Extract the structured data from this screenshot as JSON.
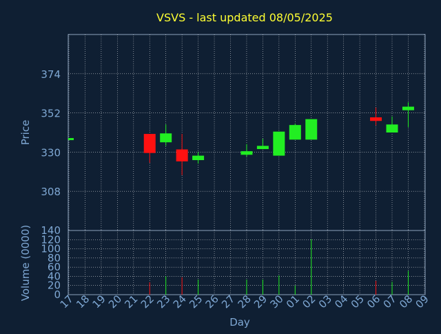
{
  "colors": {
    "background": "#0f1f33",
    "title": "#ffff33",
    "axis_text": "#7fa8d4",
    "grid": "#ffffff",
    "up": "#22ee22",
    "down": "#ff1111"
  },
  "chart_data": [
    {
      "type": "candlestick",
      "title": "VSVS - last updated 08/05/2025",
      "ylabel": "Price",
      "ylim": [
        286,
        396
      ],
      "yticks": [
        308,
        330,
        352,
        374
      ],
      "grid": true,
      "x": [
        "17",
        "18",
        "19",
        "20",
        "21",
        "22",
        "23",
        "24",
        "25",
        "26",
        "27",
        "28",
        "29",
        "30",
        "01",
        "02",
        "03",
        "04",
        "05",
        "06",
        "07",
        "08",
        "09"
      ],
      "candles": [
        {
          "x": "17",
          "open": 337.3,
          "close": 337.3,
          "high": 337.3,
          "low": 337.3
        },
        {
          "x": "22",
          "open": 340.2,
          "close": 329.5,
          "high": 340.2,
          "low": 324.0
        },
        {
          "x": "23",
          "open": 335.5,
          "close": 340.5,
          "high": 345.5,
          "low": 333.5
        },
        {
          "x": "24",
          "open": 331.5,
          "close": 324.8,
          "high": 340.2,
          "low": 317.1
        },
        {
          "x": "25",
          "open": 325.5,
          "close": 328.0,
          "high": 330.0,
          "low": 323.5
        },
        {
          "x": "28",
          "open": 328.5,
          "close": 330.5,
          "high": 334.5,
          "low": 327.5
        },
        {
          "x": "29",
          "open": 331.7,
          "close": 333.5,
          "high": 337.5,
          "low": 331.5
        },
        {
          "x": "30",
          "open": 328.0,
          "close": 341.5,
          "high": 341.5,
          "low": 328.0
        },
        {
          "x": "01",
          "open": 337.0,
          "close": 345.2,
          "high": 346.0,
          "low": 337.0
        },
        {
          "x": "02",
          "open": 337.0,
          "close": 348.5,
          "high": 348.5,
          "low": 337.0
        },
        {
          "x": "06",
          "open": 349.5,
          "close": 347.5,
          "high": 355.0,
          "low": 345.0
        },
        {
          "x": "07",
          "open": 341.0,
          "close": 345.5,
          "high": 350.0,
          "low": 341.0
        },
        {
          "x": "08",
          "open": 353.5,
          "close": 355.5,
          "high": 358.0,
          "low": 344.0
        }
      ]
    },
    {
      "type": "bar",
      "xlabel": "Day",
      "ylabel": "Volume (0000)",
      "ylim": [
        0,
        140
      ],
      "yticks": [
        0,
        20,
        40,
        60,
        80,
        100,
        120,
        140
      ],
      "grid": true,
      "x": [
        "17",
        "18",
        "19",
        "20",
        "21",
        "22",
        "23",
        "24",
        "25",
        "26",
        "27",
        "28",
        "29",
        "30",
        "01",
        "02",
        "03",
        "04",
        "05",
        "06",
        "07",
        "08",
        "09"
      ],
      "bars": [
        {
          "x": "22",
          "value": 27,
          "direction": "down"
        },
        {
          "x": "23",
          "value": 40,
          "direction": "up"
        },
        {
          "x": "24",
          "value": 38,
          "direction": "down"
        },
        {
          "x": "25",
          "value": 33,
          "direction": "up"
        },
        {
          "x": "28",
          "value": 33,
          "direction": "up"
        },
        {
          "x": "29",
          "value": 33,
          "direction": "up"
        },
        {
          "x": "30",
          "value": 42,
          "direction": "up"
        },
        {
          "x": "01",
          "value": 20,
          "direction": "up"
        },
        {
          "x": "02",
          "value": 121,
          "direction": "up"
        },
        {
          "x": "06",
          "value": 30,
          "direction": "down"
        },
        {
          "x": "07",
          "value": 28,
          "direction": "up"
        },
        {
          "x": "08",
          "value": 52,
          "direction": "up"
        }
      ]
    }
  ]
}
